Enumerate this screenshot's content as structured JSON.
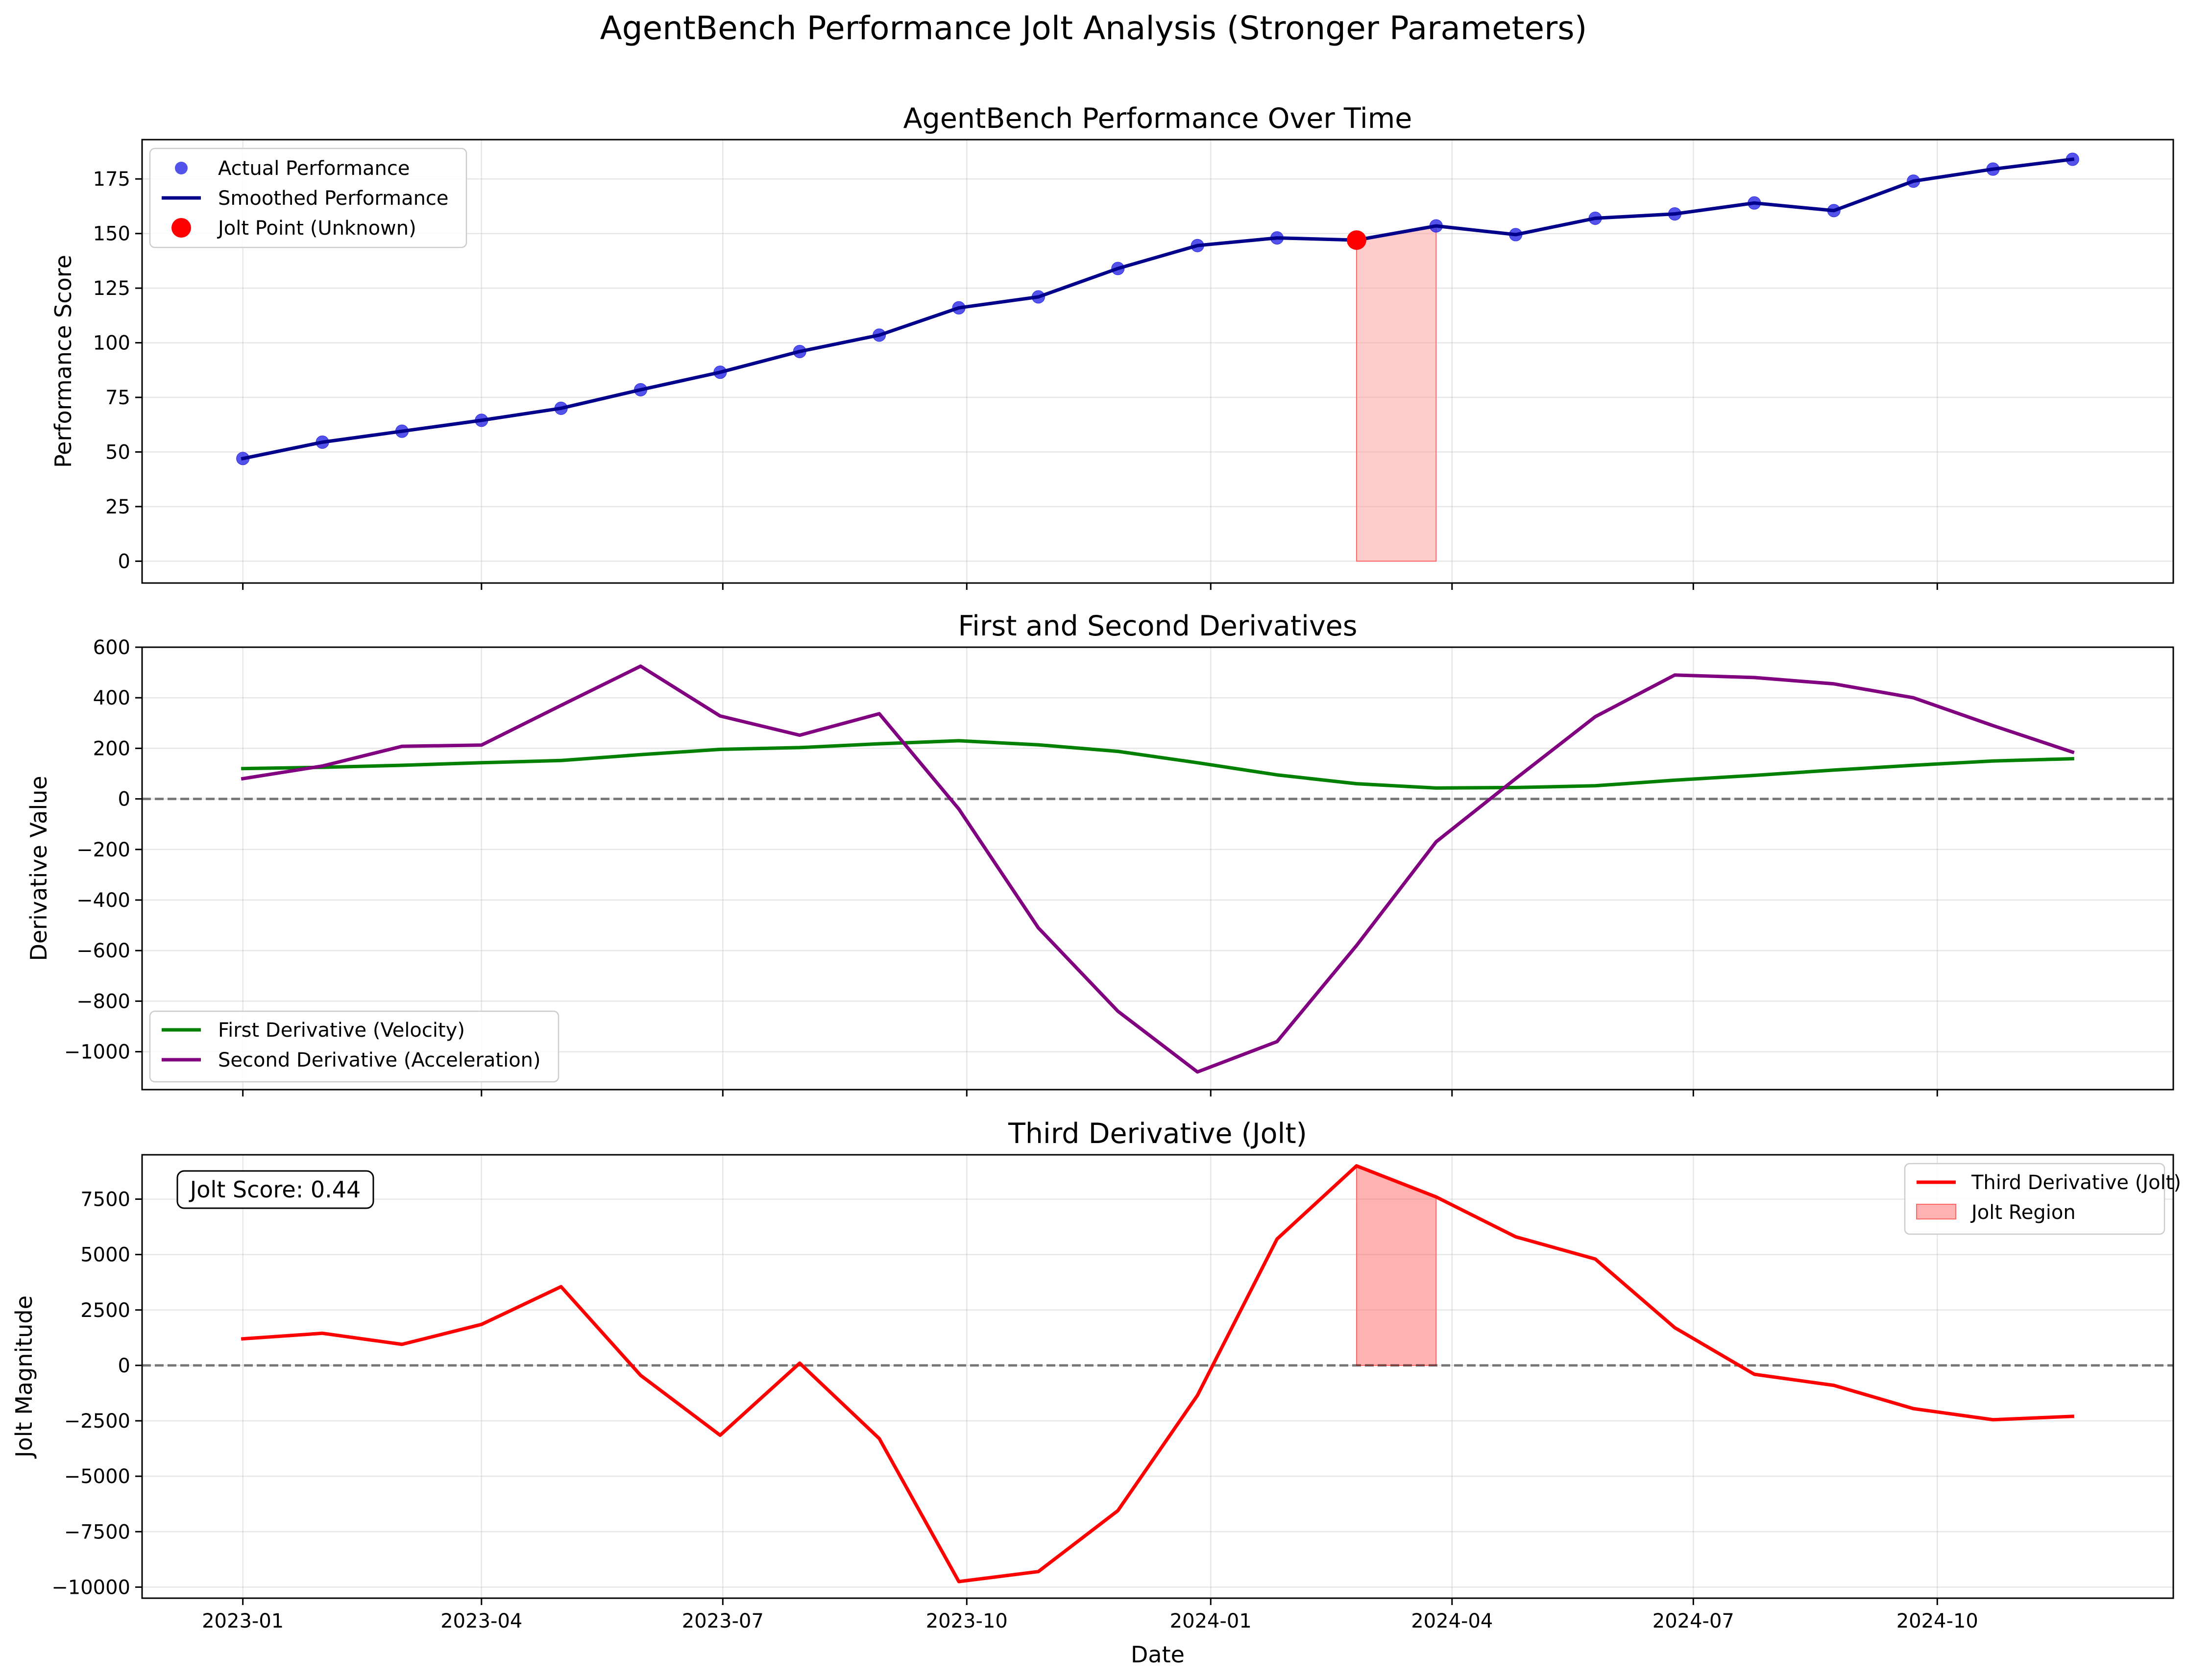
{
  "title": "AgentBench Performance Jolt Analysis (Stronger Parameters)",
  "xlabel": "Date",
  "x_tick_labels": [
    "2023-01",
    "2023-04",
    "2023-07",
    "2023-10",
    "2024-01",
    "2024-04",
    "2024-07",
    "2024-10"
  ],
  "chart_data": [
    {
      "type": "line",
      "title": "AgentBench Performance Over Time",
      "ylabel": "Performance Score",
      "x": [
        "2023-01-01",
        "2023-01-31",
        "2023-03-02",
        "2023-04-01",
        "2023-05-01",
        "2023-05-31",
        "2023-06-30",
        "2023-07-30",
        "2023-08-29",
        "2023-09-28",
        "2023-10-28",
        "2023-11-27",
        "2023-12-27",
        "2024-01-26",
        "2024-02-25",
        "2024-03-26",
        "2024-04-25",
        "2024-05-25",
        "2024-06-24",
        "2024-07-24",
        "2024-08-23",
        "2024-09-22",
        "2024-10-22",
        "2024-11-21"
      ],
      "ylim": [
        -10,
        193
      ],
      "y_ticks": [
        0,
        25,
        50,
        75,
        100,
        125,
        150,
        175
      ],
      "grid": true,
      "legend_position": "top-left",
      "series": [
        {
          "name": "Actual Performance",
          "kind": "scatter",
          "color": "#2828e6",
          "values": [
            47,
            54.5,
            59.5,
            64.5,
            70,
            78.5,
            86.5,
            96,
            103.5,
            116,
            121,
            134,
            144.5,
            148,
            147,
            153.5,
            149.5,
            157,
            159,
            164,
            160.5,
            174,
            179.5,
            184
          ]
        },
        {
          "name": "Smoothed Performance",
          "kind": "line",
          "color": "#00008b",
          "values": [
            47,
            54.5,
            59.5,
            64.5,
            70,
            78.5,
            86.5,
            96,
            103.5,
            116,
            121,
            134,
            144.5,
            148,
            147,
            153.5,
            149.5,
            157,
            159,
            164,
            160.5,
            174,
            179.5,
            184
          ]
        },
        {
          "name": "Jolt Point (Unknown)",
          "kind": "marker",
          "color": "#ff0000",
          "x": [
            "2024-02-25"
          ],
          "values": [
            147
          ]
        }
      ],
      "shaded_region": {
        "x_start": "2024-02-25",
        "x_end": "2024-03-26",
        "color": "#ff9999"
      }
    },
    {
      "type": "line",
      "title": "First and Second Derivatives",
      "ylabel": "Derivative Value",
      "ylim": [
        -1150,
        600
      ],
      "y_ticks": [
        -1000,
        -800,
        -600,
        -400,
        -200,
        0,
        200,
        400,
        600
      ],
      "grid": true,
      "zero_line": true,
      "legend_position": "bottom-left",
      "series": [
        {
          "name": "First Derivative (Velocity)",
          "color": "#008000",
          "values": [
            120,
            125,
            133,
            143,
            152,
            175,
            196,
            203,
            218,
            230,
            214,
            188,
            143,
            95,
            60,
            43,
            45,
            52,
            74,
            93,
            114,
            133,
            150,
            159
          ]
        },
        {
          "name": "Second Derivative (Acceleration)",
          "color": "#800080",
          "values": [
            80,
            130,
            208,
            213,
            370,
            525,
            328,
            252,
            337,
            -40,
            -510,
            -840,
            -1080,
            -960,
            -580,
            -170,
            80,
            325,
            490,
            480,
            455,
            400,
            290,
            185
          ]
        }
      ]
    },
    {
      "type": "line",
      "title": "Third Derivative (Jolt)",
      "ylabel": "Jolt Magnitude",
      "ylim": [
        -10500,
        9500
      ],
      "y_ticks": [
        -10000,
        -7500,
        -5000,
        -2500,
        0,
        2500,
        5000,
        7500
      ],
      "grid": true,
      "zero_line": true,
      "legend_position": "top-right",
      "annotation": "Jolt Score: 0.44",
      "series": [
        {
          "name": "Third Derivative (Jolt)",
          "color": "#ff0000",
          "values": [
            1200,
            1450,
            950,
            1850,
            3550,
            -450,
            -3150,
            100,
            -3300,
            -9750,
            -9300,
            -6550,
            -1350,
            5700,
            9000,
            7600,
            5800,
            4800,
            1700,
            -400,
            -900,
            -1950,
            -2450,
            -2300
          ]
        }
      ],
      "shaded_region": {
        "name": "Jolt Region",
        "x_start": "2024-02-25",
        "x_end": "2024-03-26",
        "color": "#ff6666"
      }
    }
  ]
}
